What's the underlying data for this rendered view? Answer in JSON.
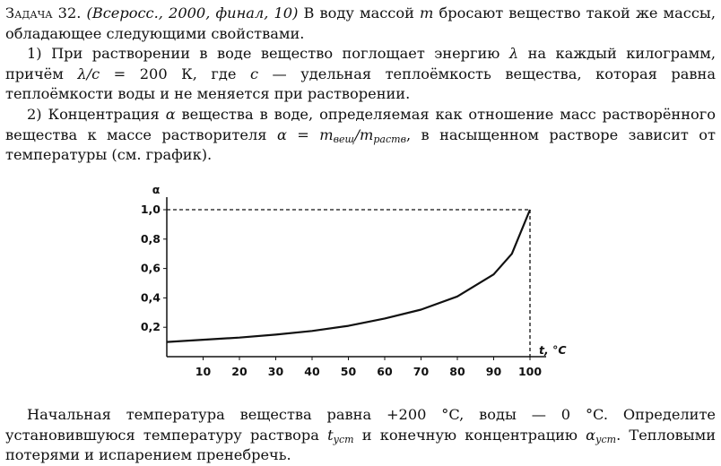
{
  "problem": {
    "label": "Задача 32.",
    "source": "(Всеросс., 2000, финал, 10)",
    "intro_a": "В воду массой",
    "mass_var": "m",
    "intro_b": "бросают вещество такой же массы, обладающее следующими свойствами."
  },
  "item1": {
    "a": "1) При растворении в воде вещество поглощает энергию",
    "lambda": "λ",
    "b": "на каждый килограмм, причём",
    "ratio": "λ/c",
    "c": "= 200 К, где",
    "c_var": "c",
    "d": "— удельная теплоёмкость вещества, которая равна теплоёмкости воды и не меняется при растворении."
  },
  "item2": {
    "a": "2) Концентрация",
    "alpha": "α",
    "b": "вещества в воде, определяемая как отношение масс растворённого вещества к массе растворителя",
    "formula_start": "α = m",
    "sub1": "вещ",
    "formula_mid": "/m",
    "sub2": "раств",
    "c": ", в насыщенном растворе зависит от температуры (см. график)."
  },
  "question": {
    "a": "Начальная температура вещества равна +200 °C, воды — 0 °C. Определите установившуюся температуру раствора",
    "t_var": "t",
    "t_sub": "уст",
    "b": "и конечную концентрацию",
    "alpha_var": "α",
    "alpha_sub": "уст",
    "c": ". Тепловыми потерями и испарением пренебречь."
  },
  "chart_data": {
    "type": "line",
    "ylabel": "α",
    "xlabel": "t, °C",
    "xlim": [
      0,
      100
    ],
    "ylim": [
      0,
      1.0
    ],
    "x_ticks": [
      "10",
      "20",
      "30",
      "40",
      "50",
      "60",
      "70",
      "80",
      "90",
      "100"
    ],
    "y_ticks": [
      "0,2",
      "0,4",
      "0,6",
      "0,8",
      "1,0"
    ],
    "x": [
      0,
      10,
      20,
      30,
      40,
      50,
      60,
      70,
      80,
      90,
      95,
      100
    ],
    "y": [
      0.1,
      0.115,
      0.13,
      0.15,
      0.175,
      0.21,
      0.26,
      0.32,
      0.41,
      0.56,
      0.7,
      1.0
    ],
    "guides": {
      "x": 100,
      "y": 1.0,
      "style": "dashed"
    }
  }
}
